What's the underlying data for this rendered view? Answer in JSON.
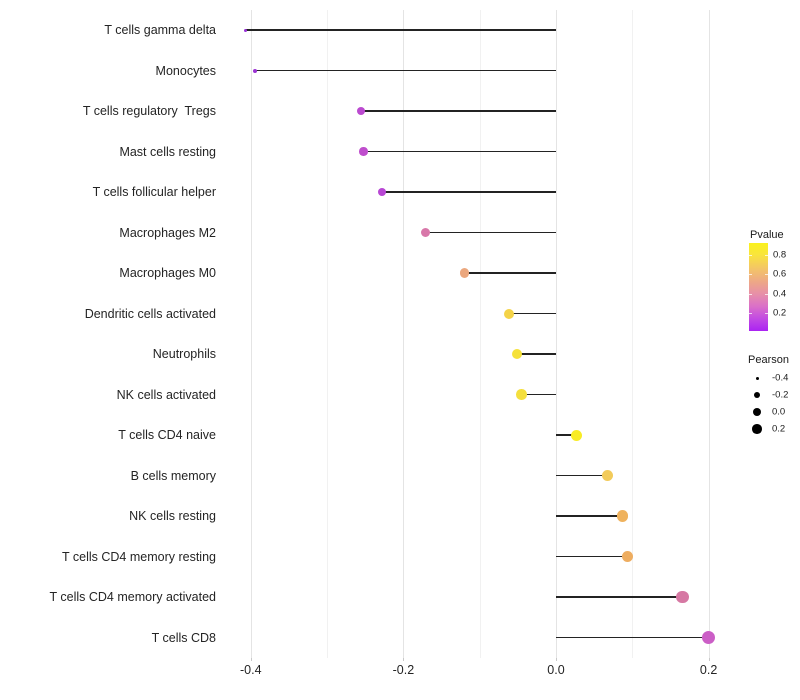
{
  "chart_data": {
    "type": "lollipop",
    "title": "",
    "xlabel": "",
    "ylabel": "",
    "xlim": [
      -0.44,
      0.23
    ],
    "grid": true,
    "categories": [
      "T cells gamma delta",
      "Monocytes",
      "T cells regulatory  Tregs",
      "Mast cells resting",
      "T cells follicular helper",
      "Macrophages M2",
      "Macrophages M0",
      "Dendritic cells activated",
      "Neutrophils",
      "NK cells activated",
      "T cells CD4 naive",
      "B cells memory",
      "NK cells resting",
      "T cells CD4 memory resting",
      "T cells CD4 memory activated",
      "T cells CD8"
    ],
    "values": [
      -0.407,
      -0.395,
      -0.256,
      -0.252,
      -0.228,
      -0.171,
      -0.12,
      -0.062,
      -0.051,
      -0.045,
      0.027,
      0.068,
      0.087,
      0.094,
      0.166,
      0.2
    ],
    "points": [
      {
        "label": "T cells gamma delta",
        "pearson": -0.407,
        "color": "#9a32d8",
        "size": 3
      },
      {
        "label": "Monocytes",
        "pearson": -0.395,
        "color": "#9b33d3",
        "size": 4
      },
      {
        "label": "T cells regulatory  Tregs",
        "pearson": -0.256,
        "color": "#bb4ad0",
        "size": 8
      },
      {
        "label": "Mast cells resting",
        "pearson": -0.252,
        "color": "#bf4ecd",
        "size": 8.5
      },
      {
        "label": "T cells follicular helper",
        "pearson": -0.228,
        "color": "#b847d4",
        "size": 8
      },
      {
        "label": "Macrophages M2",
        "pearson": -0.171,
        "color": "#d877a9",
        "size": 9
      },
      {
        "label": "Macrophages M0",
        "pearson": -0.12,
        "color": "#eba77e",
        "size": 9.5
      },
      {
        "label": "Dendritic cells activated",
        "pearson": -0.062,
        "color": "#f4d348",
        "size": 10
      },
      {
        "label": "Neutrophils",
        "pearson": -0.051,
        "color": "#f5e139",
        "size": 10
      },
      {
        "label": "NK cells activated",
        "pearson": -0.045,
        "color": "#f4df3d",
        "size": 10.5
      },
      {
        "label": "T cells CD4 naive",
        "pearson": 0.027,
        "color": "#f8ec25",
        "size": 11
      },
      {
        "label": "B cells memory",
        "pearson": 0.068,
        "color": "#f2cb5b",
        "size": 11
      },
      {
        "label": "NK cells resting",
        "pearson": 0.087,
        "color": "#efb25d",
        "size": 11.5
      },
      {
        "label": "T cells CD4 memory resting",
        "pearson": 0.094,
        "color": "#eead60",
        "size": 11.5
      },
      {
        "label": "T cells CD4 memory activated",
        "pearson": 0.166,
        "color": "#d678a3",
        "size": 12.5
      },
      {
        "label": "T cells CD8",
        "pearson": 0.2,
        "color": "#cb5ec6",
        "size": 13
      }
    ],
    "x_ticks": [
      {
        "value": -0.4,
        "label": "-0.4"
      },
      {
        "value": -0.2,
        "label": "-0.2"
      },
      {
        "value": 0.0,
        "label": "0.0"
      },
      {
        "value": 0.2,
        "label": "0.2"
      }
    ],
    "x_minor_ticks": [
      -0.3,
      -0.1,
      0.1
    ],
    "legend_pvalue": {
      "title": "Pvalue",
      "ticks": [
        "0.8",
        "0.6",
        "0.4",
        "0.2"
      ],
      "gradient": [
        {
          "color": "#faf21e",
          "pos": "0%"
        },
        {
          "color": "#f9e53c",
          "pos": "13%"
        },
        {
          "color": "#f3c369",
          "pos": "30%"
        },
        {
          "color": "#eda689",
          "pos": "45%"
        },
        {
          "color": "#e78fa9",
          "pos": "58%"
        },
        {
          "color": "#da70c8",
          "pos": "72%"
        },
        {
          "color": "#c24ae3",
          "pos": "86%"
        },
        {
          "color": "#aa23f2",
          "pos": "100%"
        }
      ]
    },
    "legend_pearson": {
      "title": "Pearson",
      "entries": [
        {
          "label": "-0.4",
          "diameter": 3
        },
        {
          "label": "-0.2",
          "diameter": 6.5
        },
        {
          "label": "0.0",
          "diameter": 8
        },
        {
          "label": "0.2",
          "diameter": 9.5
        }
      ]
    }
  }
}
